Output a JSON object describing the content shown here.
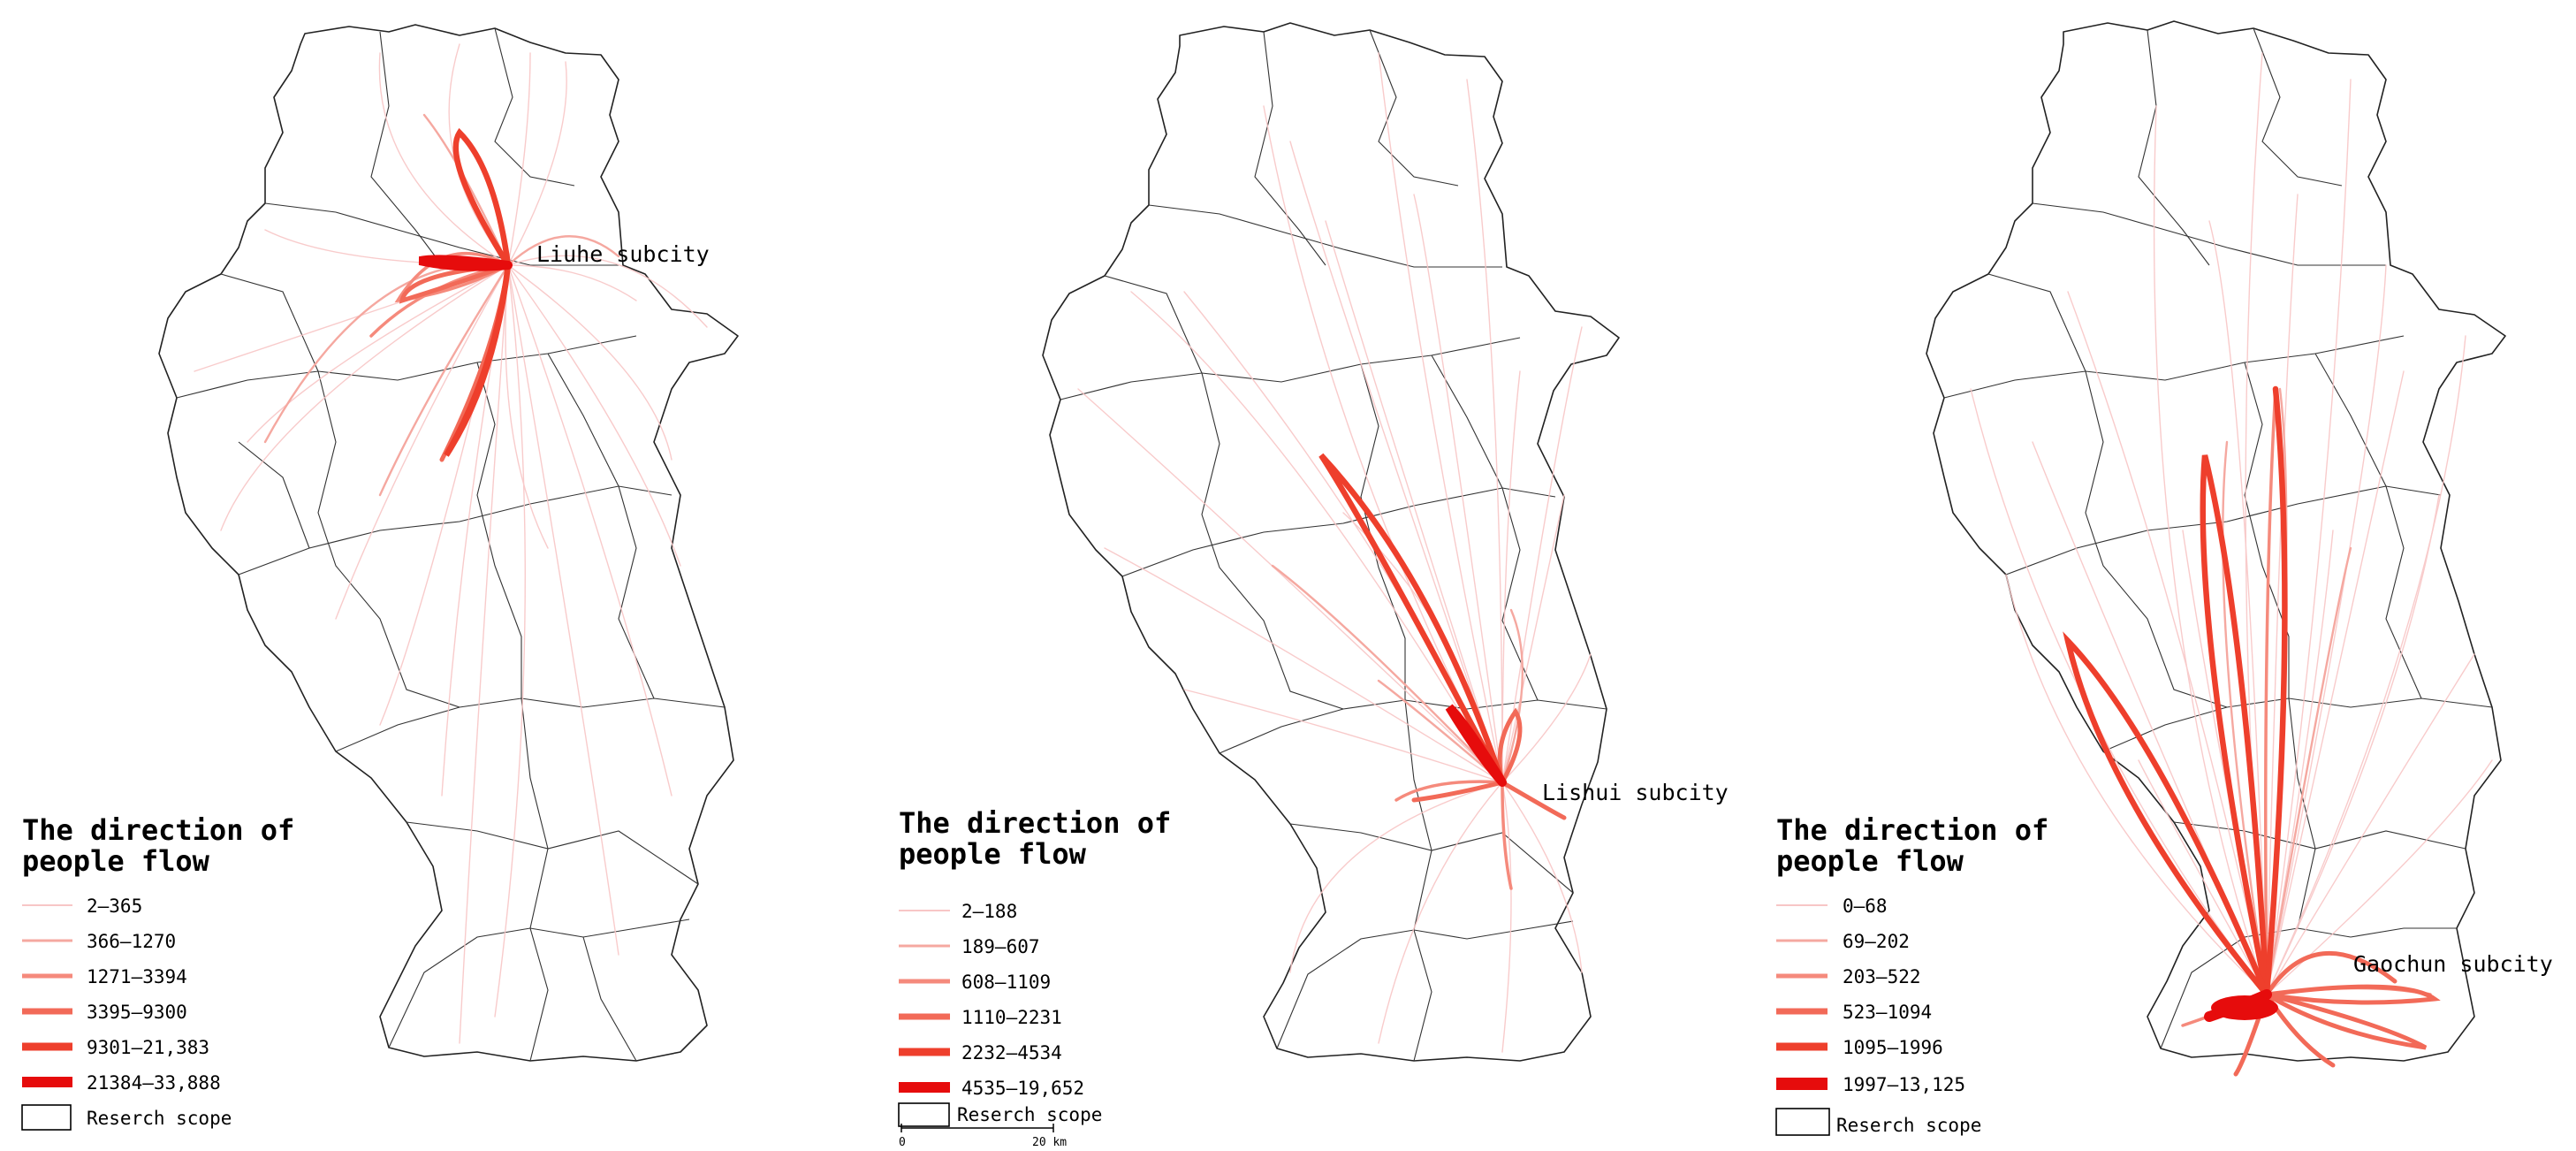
{
  "panels": [
    {
      "subcity_label": "Liuhe subcity",
      "legend_title_line1": "The direction of",
      "legend_title_line2": "people flow",
      "classes": [
        "2—365",
        "366—1270",
        "1271—3394",
        "3395—9300",
        "9301—21,383",
        "21384—33,888"
      ],
      "scope_label": "Reserch scope"
    },
    {
      "subcity_label": "Lishui subcity",
      "legend_title_line1": "The direction of",
      "legend_title_line2": "people flow",
      "classes": [
        "2—188",
        "189—607",
        "608—1109",
        "1110—2231",
        "2232—4534",
        "4535—19,652"
      ],
      "scope_label": "Reserch scope",
      "scalebar": {
        "start": "0",
        "end": "20 km"
      }
    },
    {
      "subcity_label": "Gaochun subcity",
      "legend_title_line1": "The direction of",
      "legend_title_line2": "people flow",
      "classes": [
        "0—68",
        "69—202",
        "203—522",
        "523—1094",
        "1095—1996",
        "1997—13,125"
      ],
      "scope_label": "Reserch scope"
    }
  ],
  "colors": {
    "class1": "#f8c6c6",
    "class2": "#f5a8a0",
    "class3": "#f58a7c",
    "class4": "#f26a58",
    "class5": "#ee3f2c",
    "class6": "#e60c0c",
    "boundary": "#222222"
  }
}
